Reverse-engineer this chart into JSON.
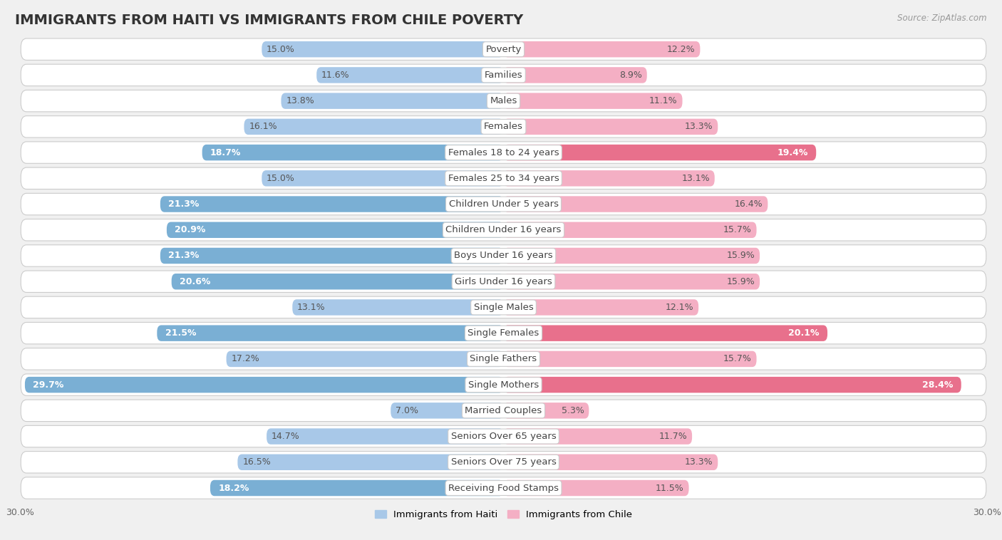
{
  "title": "IMMIGRANTS FROM HAITI VS IMMIGRANTS FROM CHILE POVERTY",
  "source": "Source: ZipAtlas.com",
  "categories": [
    "Poverty",
    "Families",
    "Males",
    "Females",
    "Females 18 to 24 years",
    "Females 25 to 34 years",
    "Children Under 5 years",
    "Children Under 16 years",
    "Boys Under 16 years",
    "Girls Under 16 years",
    "Single Males",
    "Single Females",
    "Single Fathers",
    "Single Mothers",
    "Married Couples",
    "Seniors Over 65 years",
    "Seniors Over 75 years",
    "Receiving Food Stamps"
  ],
  "haiti_values": [
    15.0,
    11.6,
    13.8,
    16.1,
    18.7,
    15.0,
    21.3,
    20.9,
    21.3,
    20.6,
    13.1,
    21.5,
    17.2,
    29.7,
    7.0,
    14.7,
    16.5,
    18.2
  ],
  "chile_values": [
    12.2,
    8.9,
    11.1,
    13.3,
    19.4,
    13.1,
    16.4,
    15.7,
    15.9,
    15.9,
    12.1,
    20.1,
    15.7,
    28.4,
    5.3,
    11.7,
    13.3,
    11.5
  ],
  "haiti_color_normal": "#a8c8e8",
  "haiti_color_highlight": "#7aafd4",
  "chile_color_normal": "#f4afc4",
  "chile_color_highlight": "#e8708c",
  "background_color": "#f0f0f0",
  "row_bg_color": "#ffffff",
  "row_separator_color": "#d8d8d8",
  "axis_max": 30.0,
  "legend_haiti": "Immigrants from Haiti",
  "legend_chile": "Immigrants from Chile",
  "haiti_highlight_indices": [
    4,
    6,
    7,
    8,
    9,
    11,
    13,
    17
  ],
  "chile_highlight_indices": [
    4,
    11,
    13
  ],
  "bar_height": 0.62,
  "title_fontsize": 14,
  "label_fontsize": 9.5,
  "value_fontsize": 9,
  "tick_fontsize": 9
}
